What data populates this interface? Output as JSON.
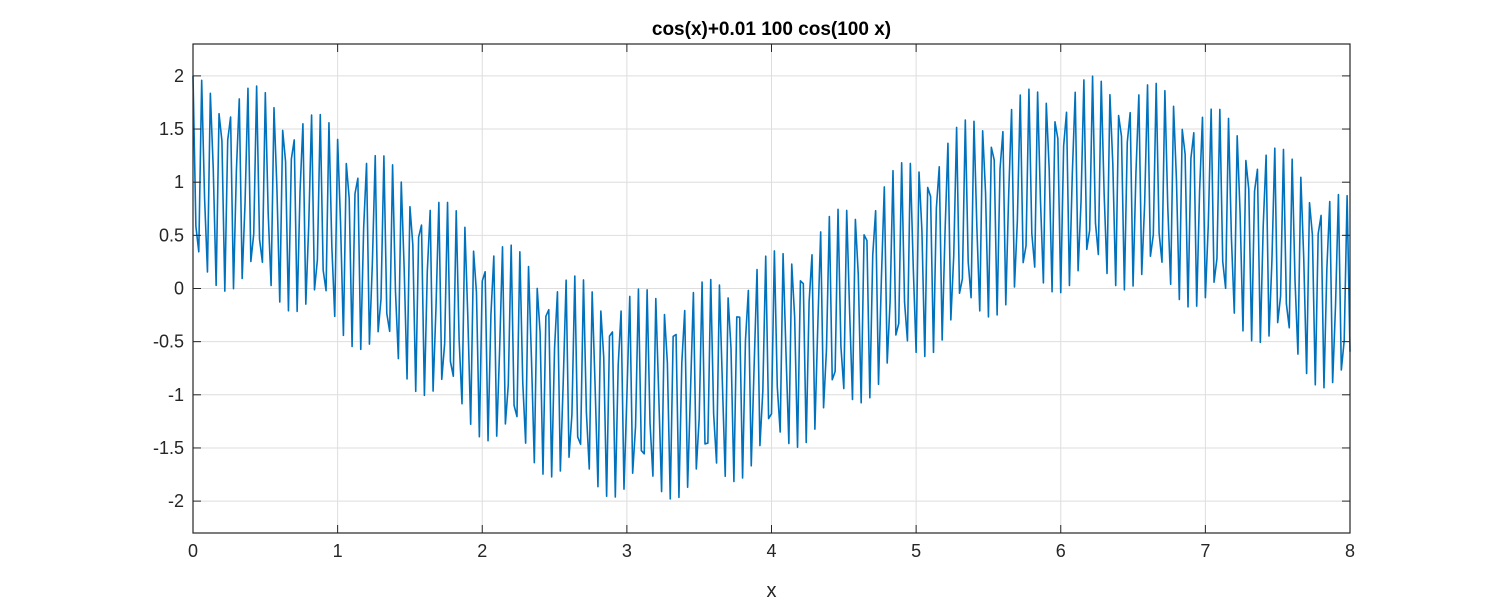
{
  "chart_data": {
    "type": "line",
    "title": "cos(x)+0.01 100 cos(100 x)",
    "xlabel": "x",
    "ylabel": "",
    "xlim": [
      0,
      8
    ],
    "ylim": [
      -2.3,
      2.3
    ],
    "xticks": [
      0,
      1,
      2,
      3,
      4,
      5,
      6,
      7,
      8
    ],
    "xtick_labels": [
      "0",
      "1",
      "2",
      "3",
      "4",
      "5",
      "6",
      "7",
      "8"
    ],
    "yticks": [
      -2,
      -1.5,
      -1,
      -0.5,
      0,
      0.5,
      1,
      1.5,
      2
    ],
    "ytick_labels": [
      "-2",
      "-1.5",
      "-1",
      "-0.5",
      "0",
      "0.5",
      "1",
      "1.5",
      "2"
    ],
    "grid": true,
    "series": [
      {
        "expression": "cos(x)+0.01*100*cos(100*x)",
        "x_start": 0,
        "x_end": 8,
        "x_step": 0.02,
        "color": "#0072BD"
      }
    ]
  }
}
